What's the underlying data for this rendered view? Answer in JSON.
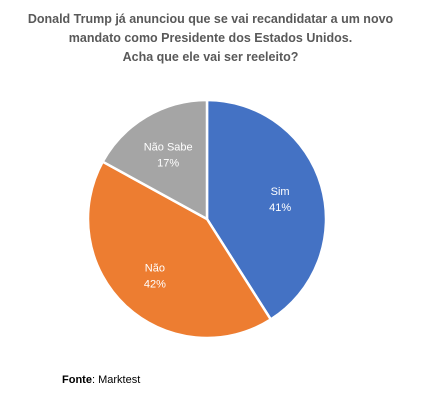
{
  "chart_data": {
    "type": "pie",
    "title_lines": [
      "Donald Trump já anunciou que se vai recandidatar a um novo",
      "mandato como Presidente dos Estados Unidos.",
      "Acha que ele vai ser reeleito?"
    ],
    "slices": [
      {
        "label": "Sim",
        "value": 41,
        "value_label": "41%",
        "color": "#4472C4"
      },
      {
        "label": "Não",
        "value": 42,
        "value_label": "42%",
        "color": "#ED7D31"
      },
      {
        "label": "Não Sabe",
        "value": 17,
        "value_label": "17%",
        "color": "#A5A5A5"
      }
    ]
  },
  "source": {
    "label": "Fonte",
    "separator": ": ",
    "value": "Marktest"
  }
}
